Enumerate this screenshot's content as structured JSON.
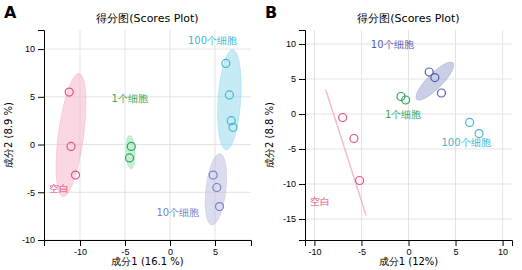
{
  "chart_data": [
    {
      "type": "scatter",
      "title": "得分图(Scores Plot)",
      "xlabel": "成分1 (16.1 %)",
      "ylabel": "成分2 (8.9 %)",
      "xlim": [
        -14,
        9
      ],
      "ylim": [
        -10,
        12
      ],
      "xticks": [
        -10,
        -5,
        0,
        5
      ],
      "yticks": [
        -10,
        -5,
        0,
        5,
        10
      ],
      "grid": true,
      "marker": "circle",
      "series": [
        {
          "color": "#e85080",
          "x": [
            -11.2,
            -11.0,
            -10.5
          ],
          "y": [
            5.5,
            -0.2,
            -3.2
          ],
          "ellipse": {
            "cx": -11.0,
            "cy": 1.0,
            "width": 2.8,
            "height": 13.0,
            "angle": -8,
            "color": "#f5b0c5"
          }
        },
        {
          "color": "#30a855",
          "x": [
            -4.3,
            -4.5
          ],
          "y": [
            -0.2,
            -1.4
          ],
          "ellipse": {
            "cx": -4.4,
            "cy": -0.8,
            "width": 1.0,
            "height": 3.5,
            "angle": 3,
            "color": "#90e0aa"
          }
        },
        {
          "color": "#7880c8",
          "x": [
            4.8,
            5.2,
            5.5
          ],
          "y": [
            -3.2,
            -4.5,
            -6.5
          ],
          "ellipse": {
            "cx": 5.1,
            "cy": -4.7,
            "width": 2.2,
            "height": 7.5,
            "angle": -7,
            "color": "#b8bce0"
          }
        },
        {
          "color": "#40b8d0",
          "x": [
            6.2,
            6.6,
            6.8,
            7.0
          ],
          "y": [
            8.5,
            5.2,
            2.5,
            1.8
          ],
          "ellipse": {
            "cx": 6.6,
            "cy": 4.7,
            "width": 2.5,
            "height": 10.5,
            "angle": -4,
            "color": "#90d8ee"
          }
        }
      ],
      "annotations": [
        {
          "text": "A"
        },
        {
          "text": "空白",
          "x": -13.5,
          "y": -5.0,
          "color": "#e85080"
        },
        {
          "text": "1个细胞",
          "x": -6.5,
          "y": 4.5,
          "color": "#30a855"
        },
        {
          "text": "10个细胞",
          "x": -1.5,
          "y": -7.5,
          "color": "#7880c8"
        },
        {
          "text": "100个细胞",
          "x": 2.0,
          "y": 10.5,
          "color": "#40b8d0"
        }
      ]
    },
    {
      "type": "scatter",
      "title": "得分图(Scores Plot)",
      "xlabel": "成分1 (12%)",
      "ylabel": "成分2 (8.8 %)",
      "xlim": [
        -11,
        11
      ],
      "ylim": [
        -18,
        12
      ],
      "xticks": [
        -10,
        -5,
        0,
        5,
        10
      ],
      "yticks": [
        -15,
        -10,
        -5,
        0,
        5,
        10
      ],
      "grid": true,
      "marker": "circle",
      "series": [
        {
          "color": "#e85080",
          "x": [
            -7.0,
            -5.8,
            -5.2
          ],
          "y": [
            -0.5,
            -3.5,
            -9.5
          ],
          "line": {
            "x": [
              -8.8,
              -4.5
            ],
            "y": [
              3.5,
              -14.5
            ],
            "color": "#f5b0c5"
          }
        },
        {
          "color": "#30a855",
          "x": [
            -0.8,
            -0.3
          ],
          "y": [
            2.5,
            2.0
          ]
        },
        {
          "color": "#5060b0",
          "x": [
            2.2,
            2.8,
            3.5
          ],
          "y": [
            6.0,
            5.2,
            3.0
          ],
          "ellipse": {
            "cx": 2.8,
            "cy": 4.7,
            "width": 1.8,
            "height": 6.5,
            "angle": -35,
            "color": "#98a0cc"
          }
        },
        {
          "color": "#40b8d0",
          "x": [
            6.5,
            7.5
          ],
          "y": [
            -1.2,
            -2.8
          ]
        }
      ],
      "annotations": [
        {
          "text": "B"
        },
        {
          "text": "空白",
          "x": -10.5,
          "y": -13.0,
          "color": "#e85080"
        },
        {
          "text": "1个细胞",
          "x": -2.5,
          "y": -0.5,
          "color": "#30a855"
        },
        {
          "text": "10个细胞",
          "x": -4.0,
          "y": 9.5,
          "color": "#5060b0"
        },
        {
          "text": "100个细胞",
          "x": 3.5,
          "y": -4.5,
          "color": "#40b8d0"
        }
      ]
    }
  ]
}
